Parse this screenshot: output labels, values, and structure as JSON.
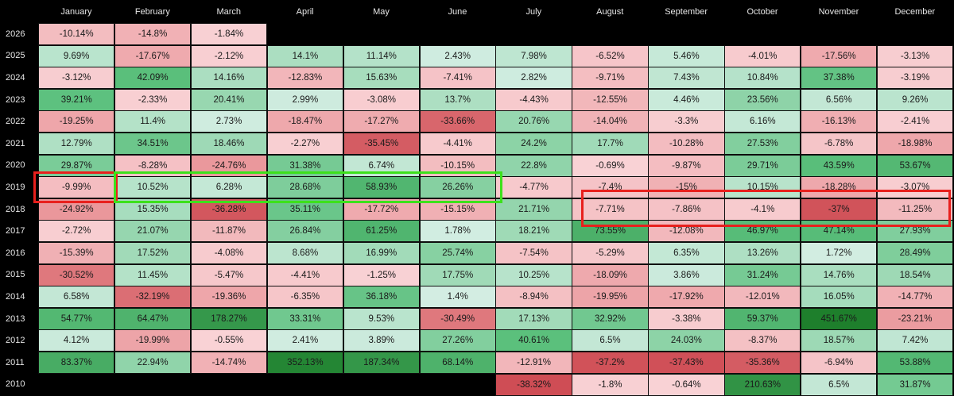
{
  "chart_data": {
    "type": "heatmap",
    "title": "",
    "months": [
      "January",
      "February",
      "March",
      "April",
      "May",
      "June",
      "July",
      "August",
      "September",
      "October",
      "November",
      "December"
    ],
    "rows": [
      {
        "year": "2026",
        "values": [
          "-10.14%",
          "-14.8%",
          "-1.84%",
          null,
          null,
          null,
          null,
          null,
          null,
          null,
          null,
          null
        ]
      },
      {
        "year": "2025",
        "values": [
          "9.69%",
          "-17.67%",
          "-2.12%",
          "14.1%",
          "11.14%",
          "2.43%",
          "7.98%",
          "-6.52%",
          "5.46%",
          "-4.01%",
          "-17.56%",
          "-3.13%"
        ]
      },
      {
        "year": "2024",
        "values": [
          "-3.12%",
          "42.09%",
          "14.16%",
          "-12.83%",
          "15.63%",
          "-7.41%",
          "2.82%",
          "-9.71%",
          "7.43%",
          "10.84%",
          "37.38%",
          "-3.19%"
        ]
      },
      {
        "year": "2023",
        "values": [
          "39.21%",
          "-2.33%",
          "20.41%",
          "2.99%",
          "-3.08%",
          "13.7%",
          "-4.43%",
          "-12.55%",
          "4.46%",
          "23.56%",
          "6.56%",
          "9.26%"
        ]
      },
      {
        "year": "2022",
        "values": [
          "-19.25%",
          "11.4%",
          "2.73%",
          "-18.47%",
          "-17.27%",
          "-33.66%",
          "20.76%",
          "-14.04%",
          "-3.3%",
          "6.16%",
          "-16.13%",
          "-2.41%"
        ]
      },
      {
        "year": "2021",
        "values": [
          "12.79%",
          "34.51%",
          "18.46%",
          "-2.27%",
          "-35.45%",
          "-4.41%",
          "24.2%",
          "17.7%",
          "-10.28%",
          "27.53%",
          "-6.78%",
          "-18.98%"
        ]
      },
      {
        "year": "2020",
        "values": [
          "29.87%",
          "-8.28%",
          "-24.76%",
          "31.38%",
          "6.74%",
          "-10.15%",
          "22.8%",
          "-0.69%",
          "-9.87%",
          "29.71%",
          "43.59%",
          "53.67%"
        ]
      },
      {
        "year": "2019",
        "values": [
          "-9.99%",
          "10.52%",
          "6.28%",
          "28.68%",
          "58.93%",
          "26.26%",
          "-4.77%",
          "-7.4%",
          "-15%",
          "10.15%",
          "-18.28%",
          "-3.07%"
        ]
      },
      {
        "year": "2018",
        "values": [
          "-24.92%",
          "15.35%",
          "-36.28%",
          "35.11%",
          "-17.72%",
          "-15.15%",
          "21.71%",
          "-7.71%",
          "-7.86%",
          "-4.1%",
          "-37%",
          "-11.25%"
        ]
      },
      {
        "year": "2017",
        "values": [
          "-2.72%",
          "21.07%",
          "-11.87%",
          "26.84%",
          "61.25%",
          "1.78%",
          "18.21%",
          "73.55%",
          "-12.08%",
          "46.97%",
          "47.14%",
          "27.93%"
        ]
      },
      {
        "year": "2016",
        "values": [
          "-15.39%",
          "17.52%",
          "-4.08%",
          "8.68%",
          "16.99%",
          "25.74%",
          "-7.54%",
          "-5.29%",
          "6.35%",
          "13.26%",
          "1.72%",
          "28.49%"
        ]
      },
      {
        "year": "2015",
        "values": [
          "-30.52%",
          "11.45%",
          "-5.47%",
          "-4.41%",
          "-1.25%",
          "17.75%",
          "10.25%",
          "-18.09%",
          "3.86%",
          "31.24%",
          "14.76%",
          "18.54%"
        ]
      },
      {
        "year": "2014",
        "values": [
          "6.58%",
          "-32.19%",
          "-19.36%",
          "-6.35%",
          "36.18%",
          "1.4%",
          "-8.94%",
          "-19.95%",
          "-17.92%",
          "-12.01%",
          "16.05%",
          "-14.77%"
        ]
      },
      {
        "year": "2013",
        "values": [
          "54.77%",
          "64.47%",
          "178.27%",
          "33.31%",
          "9.53%",
          "-30.49%",
          "17.13%",
          "32.92%",
          "-3.38%",
          "59.37%",
          "451.67%",
          "-23.21%"
        ]
      },
      {
        "year": "2012",
        "values": [
          "4.12%",
          "-19.99%",
          "-0.55%",
          "2.41%",
          "3.89%",
          "27.26%",
          "40.61%",
          "6.5%",
          "24.03%",
          "-8.37%",
          "18.57%",
          "7.42%"
        ]
      },
      {
        "year": "2011",
        "values": [
          "83.37%",
          "22.94%",
          "-14.74%",
          "352.13%",
          "187.34%",
          "68.14%",
          "-12.91%",
          "-37.2%",
          "-37.43%",
          "-35.36%",
          "-6.94%",
          "53.88%"
        ]
      },
      {
        "year": "2010",
        "values": [
          null,
          null,
          null,
          null,
          null,
          null,
          "-38.32%",
          "-1.8%",
          "-0.64%",
          "210.63%",
          "6.5%",
          "31.87%"
        ]
      }
    ],
    "annotations": [
      {
        "type": "box",
        "color": "#e8201d",
        "rows": [
          "2019"
        ],
        "months": [
          "January"
        ]
      },
      {
        "type": "box",
        "color": "#3ce11b",
        "rows": [
          "2019"
        ],
        "months": [
          "February",
          "March",
          "April",
          "May",
          "June"
        ]
      },
      {
        "type": "box",
        "color": "#e8201d",
        "rows": [
          "2018"
        ],
        "months": [
          "August",
          "September",
          "October",
          "November",
          "December"
        ]
      }
    ],
    "colors": {
      "background": "#000000",
      "header_text": "#e6e6e6",
      "cell_text": "#1b1b1b",
      "pos_light": "#d7efe6",
      "pos_mid": "#5bc07d",
      "pos_dark": "#1e7f2c",
      "neg_light": "#f9d3d6",
      "neg_mid": "#e06f74",
      "neg_dark": "#cf4d55"
    }
  }
}
